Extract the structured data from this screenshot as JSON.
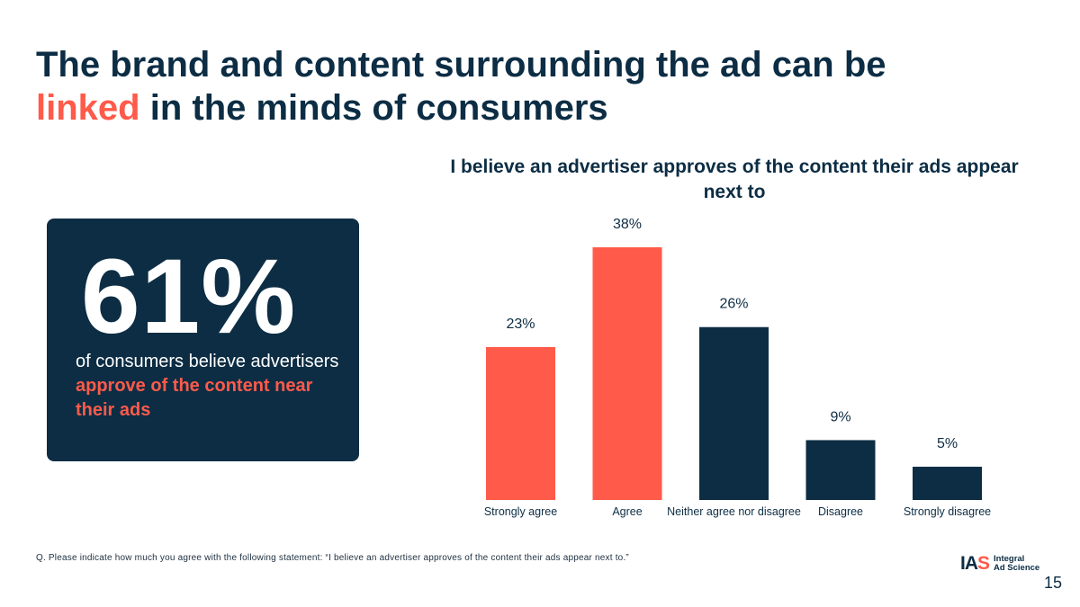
{
  "slide": {
    "title_part1": "The brand and content surrounding the ad can be",
    "title_accent": "linked",
    "title_part2": " in the minds of consumers",
    "page_number": "15"
  },
  "stat_card": {
    "number": "61%",
    "caption_plain": "of consumers believe advertisers ",
    "caption_highlight": "approve of the content near their ads"
  },
  "chart_data": {
    "type": "bar",
    "title": "I believe an advertiser approves of the content their ads appear next to",
    "categories": [
      "Strongly agree",
      "Agree",
      "Neither agree nor disagree",
      "Disagree",
      "Strongly disagree"
    ],
    "values": [
      23,
      38,
      26,
      9,
      5
    ],
    "value_labels": [
      "23%",
      "38%",
      "26%",
      "9%",
      "5%"
    ],
    "bar_colors": [
      "#ff5a4a",
      "#ff5a4a",
      "#0c2d44",
      "#0c2d44",
      "#0c2d44"
    ],
    "ylim": [
      0,
      38
    ],
    "xlabel": "",
    "ylabel": "",
    "grid": false,
    "legend": "none"
  },
  "footnote": "Q. Please indicate how much you agree with the following statement: “I believe an advertiser approves of the content their ads appear next to.”",
  "logo": {
    "mark_main": "IA",
    "mark_accent": "S",
    "line1": "Integral",
    "line2": "Ad Science"
  },
  "colors": {
    "navy": "#0c2d44",
    "coral": "#ff5a4a"
  }
}
